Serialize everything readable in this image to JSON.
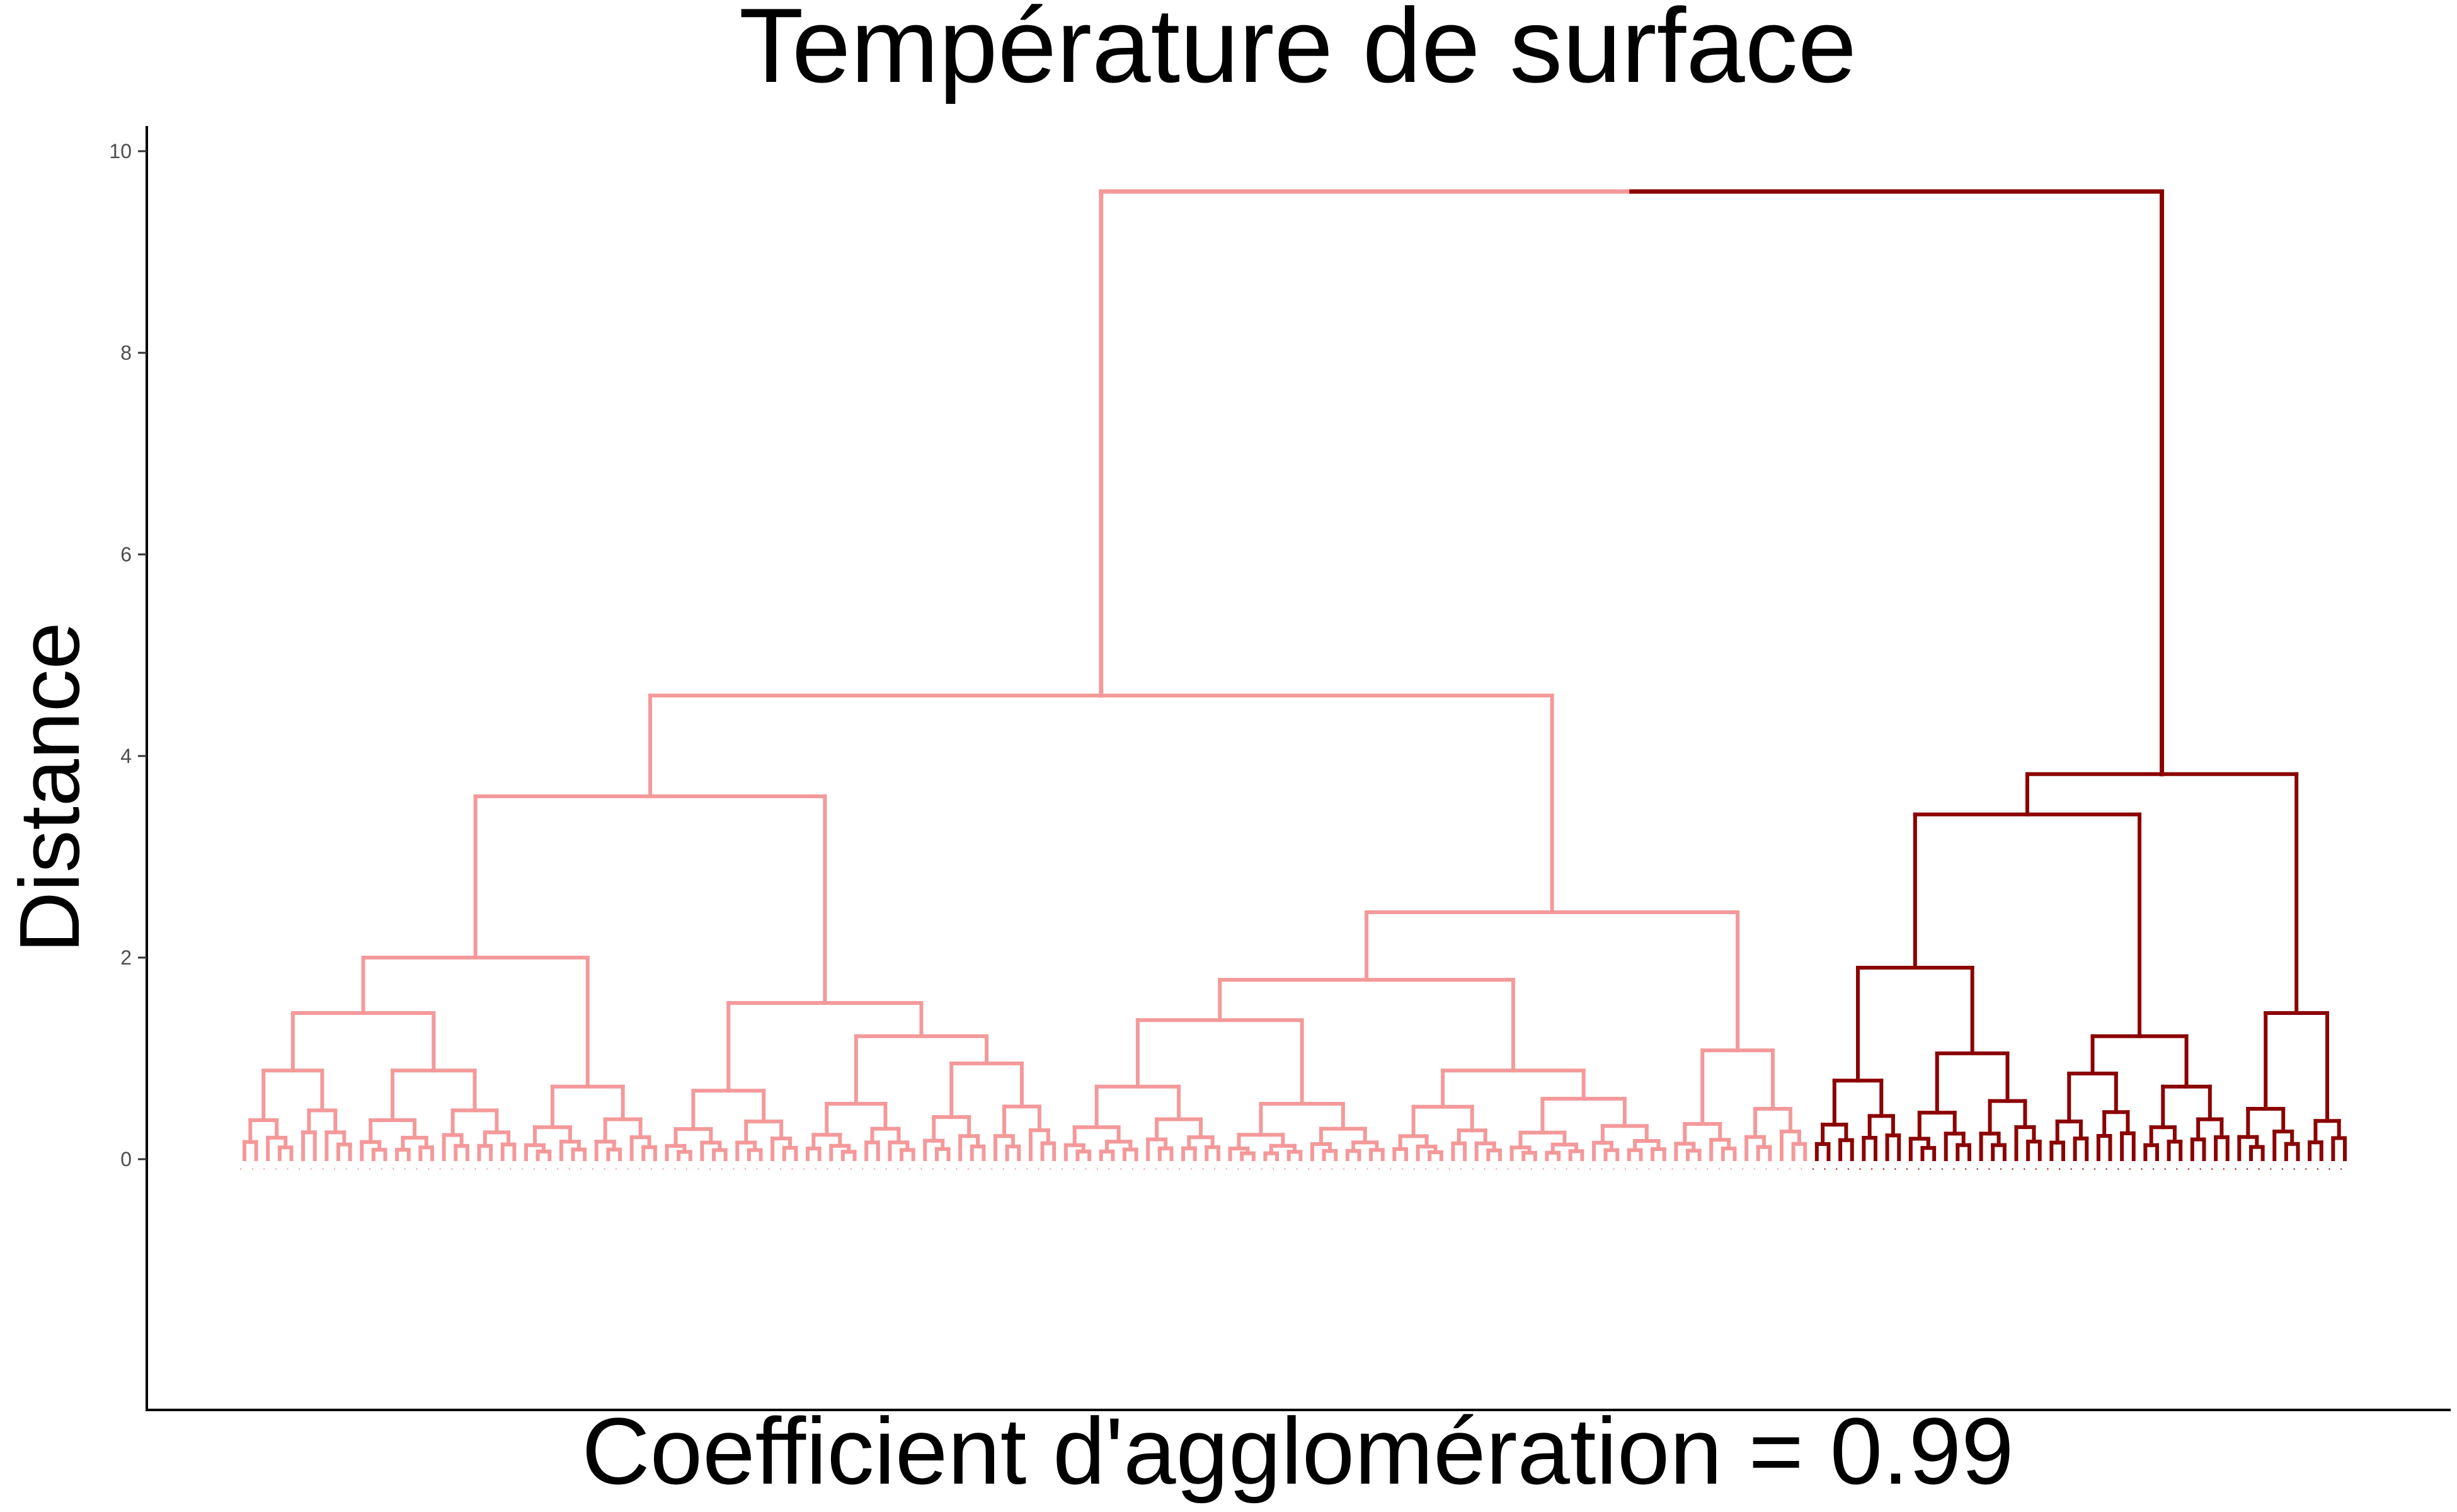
{
  "chart_data": {
    "type": "dendrogram",
    "title": "Température de surface",
    "ylabel": "Distance",
    "xlabel": "Coefficient d'agglomération = 0.99",
    "ylim": [
      -2.5,
      10.2
    ],
    "yticks": [
      0,
      2,
      4,
      6,
      8,
      10
    ],
    "grid": false,
    "colors": {
      "cluster_1": "#F4999A",
      "cluster_2": "#8B0000",
      "axis": "#000000",
      "tick_label": "#4D4D4D"
    },
    "root_height": 9.6,
    "clusters": [
      {
        "name": "",
        "color": "#F4999A",
        "height": 4.6,
        "children": [
          {
            "height": 3.6,
            "children": [
              {
                "height": 2.0,
                "children": [
                  {
                    "height": 1.45,
                    "children": [
                      {
                        "height": 0.88,
                        "leaves": 10
                      },
                      {
                        "height": 0.88,
                        "leaves": 14
                      }
                    ]
                  },
                  {
                    "height": 0.72,
                    "leaves": 12
                  }
                ]
              },
              {
                "height": 1.55,
                "children": [
                  {
                    "height": 0.68,
                    "leaves": 12
                  },
                  {
                    "height": 1.22,
                    "children": [
                      {
                        "height": 0.55,
                        "leaves": 10
                      },
                      {
                        "height": 0.95,
                        "leaves": 12
                      }
                    ]
                  }
                ]
              }
            ]
          },
          {
            "height": 2.45,
            "children": [
              {
                "height": 1.78,
                "children": [
                  {
                    "height": 1.38,
                    "children": [
                      {
                        "height": 0.72,
                        "leaves": 14
                      },
                      {
                        "height": 0.55,
                        "leaves": 14
                      }
                    ]
                  },
                  {
                    "height": 0.88,
                    "children": [
                      {
                        "height": 0.52,
                        "leaves": 10
                      },
                      {
                        "height": 0.6,
                        "leaves": 14
                      }
                    ]
                  }
                ]
              },
              {
                "height": 1.08,
                "children": [
                  {
                    "height": 0.35,
                    "leaves": 6
                  },
                  {
                    "height": 0.5,
                    "leaves": 6
                  }
                ]
              }
            ]
          }
        ]
      },
      {
        "name": "",
        "color": "#8B0000",
        "height": 3.82,
        "children": [
          {
            "height": 3.42,
            "children": [
              {
                "height": 1.9,
                "children": [
                  {
                    "height": 0.78,
                    "leaves": 8
                  },
                  {
                    "height": 1.05,
                    "leaves": 12
                  }
                ]
              },
              {
                "height": 1.22,
                "children": [
                  {
                    "height": 0.85,
                    "leaves": 8
                  },
                  {
                    "height": 0.72,
                    "leaves": 8
                  }
                ]
              }
            ]
          },
          {
            "height": 1.45,
            "children": [
              {
                "height": 0.5,
                "leaves": 6
              },
              {
                "height": 0.38,
                "leaves": 4
              }
            ]
          }
        ]
      }
    ]
  }
}
